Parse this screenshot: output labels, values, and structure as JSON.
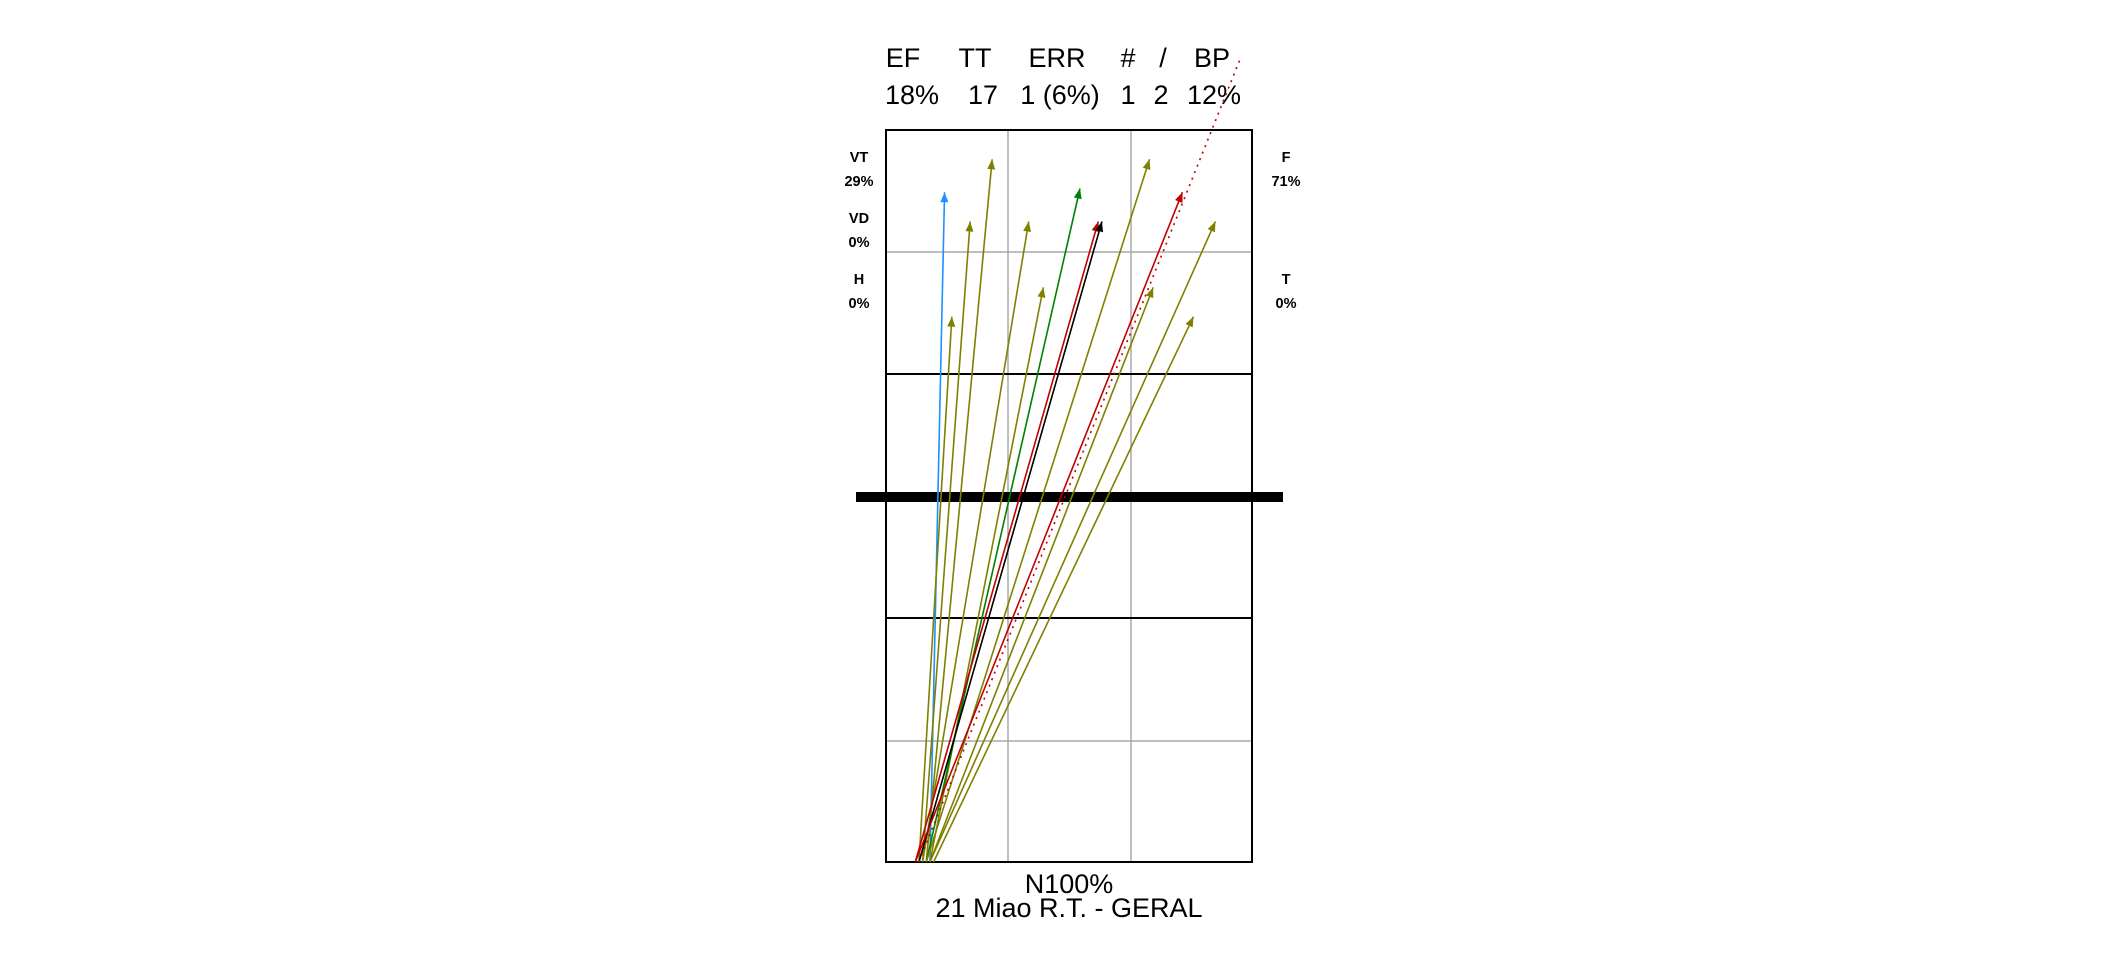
{
  "chart_data": {
    "type": "attack-direction",
    "header": {
      "labels": [
        "EF",
        "TT",
        "ERR",
        "#",
        "/",
        "BP"
      ],
      "values": [
        "18%",
        "17",
        "1 (6%)",
        "1",
        "2",
        "12%"
      ]
    },
    "left_zones": [
      {
        "label": "VT",
        "value": "29%"
      },
      {
        "label": "VD",
        "value": "0%"
      },
      {
        "label": "H",
        "value": "0%"
      }
    ],
    "right_zones": [
      {
        "label": "F",
        "value": "71%"
      },
      {
        "label": "T",
        "value": "0%"
      }
    ],
    "bottom_label": "N100%",
    "footer": "21 Miao R.T.  - GERAL",
    "colors": {
      "olive": "#808000",
      "blue": "#1e90ff",
      "green": "#008000",
      "red": "#c00000",
      "black": "#000000",
      "court_line": "#000000",
      "grid_line": "#a8a8a8"
    },
    "attacks": [
      {
        "color": "blue",
        "style": "solid",
        "from": [
          0.12,
          0.0
        ],
        "to": [
          0.16,
          0.915
        ]
      },
      {
        "color": "olive",
        "style": "solid",
        "from": [
          0.09,
          0.0
        ],
        "to": [
          0.18,
          0.745
        ]
      },
      {
        "color": "olive",
        "style": "solid",
        "from": [
          0.1,
          0.0
        ],
        "to": [
          0.23,
          0.875
        ]
      },
      {
        "color": "olive",
        "style": "solid",
        "from": [
          0.11,
          0.0
        ],
        "to": [
          0.29,
          0.96
        ]
      },
      {
        "color": "olive",
        "style": "solid",
        "from": [
          0.1,
          0.0
        ],
        "to": [
          0.39,
          0.875
        ]
      },
      {
        "color": "olive",
        "style": "solid",
        "from": [
          0.12,
          0.0
        ],
        "to": [
          0.43,
          0.785
        ]
      },
      {
        "color": "green",
        "style": "solid",
        "from": [
          0.11,
          0.0
        ],
        "to": [
          0.53,
          0.92
        ]
      },
      {
        "color": "red",
        "style": "solid",
        "from": [
          0.08,
          0.0
        ],
        "to": [
          0.58,
          0.875
        ]
      },
      {
        "color": "black",
        "style": "solid",
        "from": [
          0.09,
          0.0
        ],
        "to": [
          0.59,
          0.875
        ]
      },
      {
        "color": "olive",
        "style": "solid",
        "from": [
          0.11,
          0.0
        ],
        "to": [
          0.72,
          0.96
        ]
      },
      {
        "color": "red",
        "style": "solid",
        "from": [
          0.08,
          0.0
        ],
        "to": [
          0.81,
          0.915
        ]
      },
      {
        "color": "olive",
        "style": "solid",
        "from": [
          0.12,
          0.0
        ],
        "to": [
          0.73,
          0.785
        ]
      },
      {
        "color": "olive",
        "style": "solid",
        "from": [
          0.13,
          0.0
        ],
        "to": [
          0.84,
          0.745
        ]
      },
      {
        "color": "olive",
        "style": "solid",
        "from": [
          0.12,
          0.0
        ],
        "to": [
          0.9,
          0.875
        ]
      },
      {
        "color": "red",
        "style": "dotted",
        "from": [
          0.09,
          0.0
        ],
        "to": [
          0.97,
          1.1
        ]
      }
    ]
  }
}
